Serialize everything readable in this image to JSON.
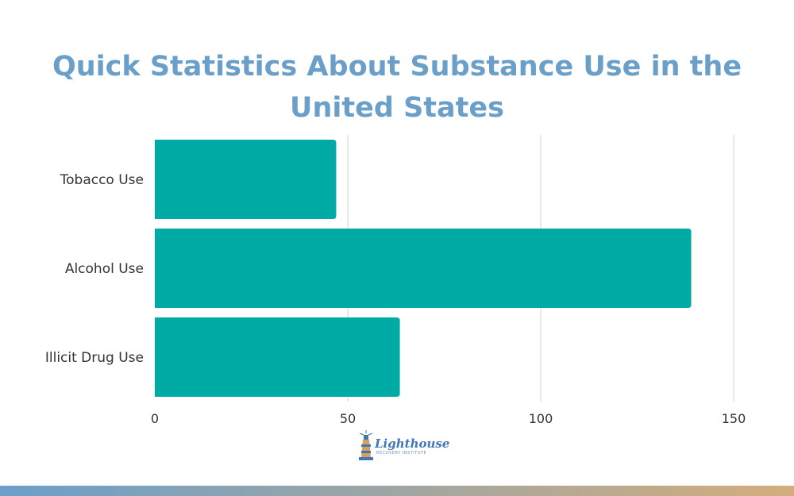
{
  "title": "Quick Statistics About Substance Use in the United States",
  "colors": {
    "title": "#6a9fca",
    "bar": "#00aba6",
    "grid": "#d0d0d0",
    "bar_gradient_start": "#6a9fca",
    "bar_gradient_end": "#d4ad7c",
    "logo_blue": "#3f78b5",
    "logo_gold": "#d6a25a"
  },
  "logo": {
    "name": "Lighthouse",
    "tagline": "RECOVERY INSTITUTE",
    "icon": "lighthouse-icon"
  },
  "chart_data": {
    "type": "bar",
    "orientation": "horizontal",
    "categories": [
      "Tobacco Use",
      "Alcohol Use",
      "Illicit Drug Use"
    ],
    "values": [
      47,
      139,
      63.5
    ],
    "title": "",
    "xlabel": "",
    "ylabel": "",
    "xlim": [
      0,
      150
    ],
    "xticks": [
      0,
      50,
      100,
      150
    ],
    "grid": true
  }
}
